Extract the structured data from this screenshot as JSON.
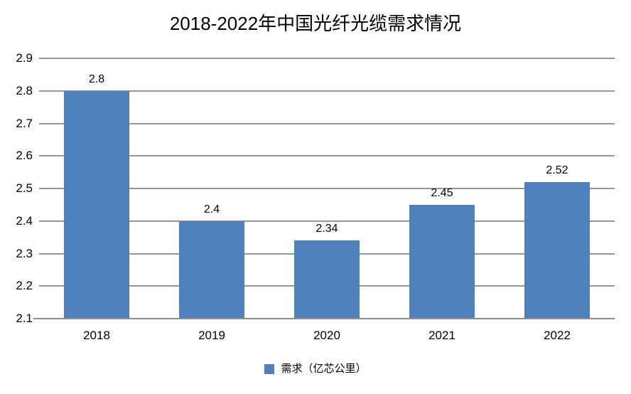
{
  "chart_data": {
    "type": "bar",
    "title": "2018-2022年中国光纤光缆需求情况",
    "categories": [
      "2018",
      "2019",
      "2020",
      "2021",
      "2022"
    ],
    "values": [
      2.8,
      2.4,
      2.34,
      2.45,
      2.52
    ],
    "data_labels": [
      "2.8",
      "2.4",
      "2.34",
      "2.45",
      "2.52"
    ],
    "xlabel": "",
    "ylabel": "",
    "ylim": [
      2.1,
      2.9
    ],
    "ytick_step": 0.1,
    "yticks": [
      "2.9",
      "2.8",
      "2.7",
      "2.6",
      "2.5",
      "2.4",
      "2.3",
      "2.2",
      "2.1"
    ],
    "grid": true,
    "legend": {
      "position": "bottom",
      "entries": [
        "需求（亿芯公里）"
      ]
    },
    "colors": {
      "bar": "#4F81BD",
      "gridline": "#969696",
      "axis_line": "#8C8C8C",
      "text": "#000000",
      "background": "#FFFFFF"
    }
  }
}
